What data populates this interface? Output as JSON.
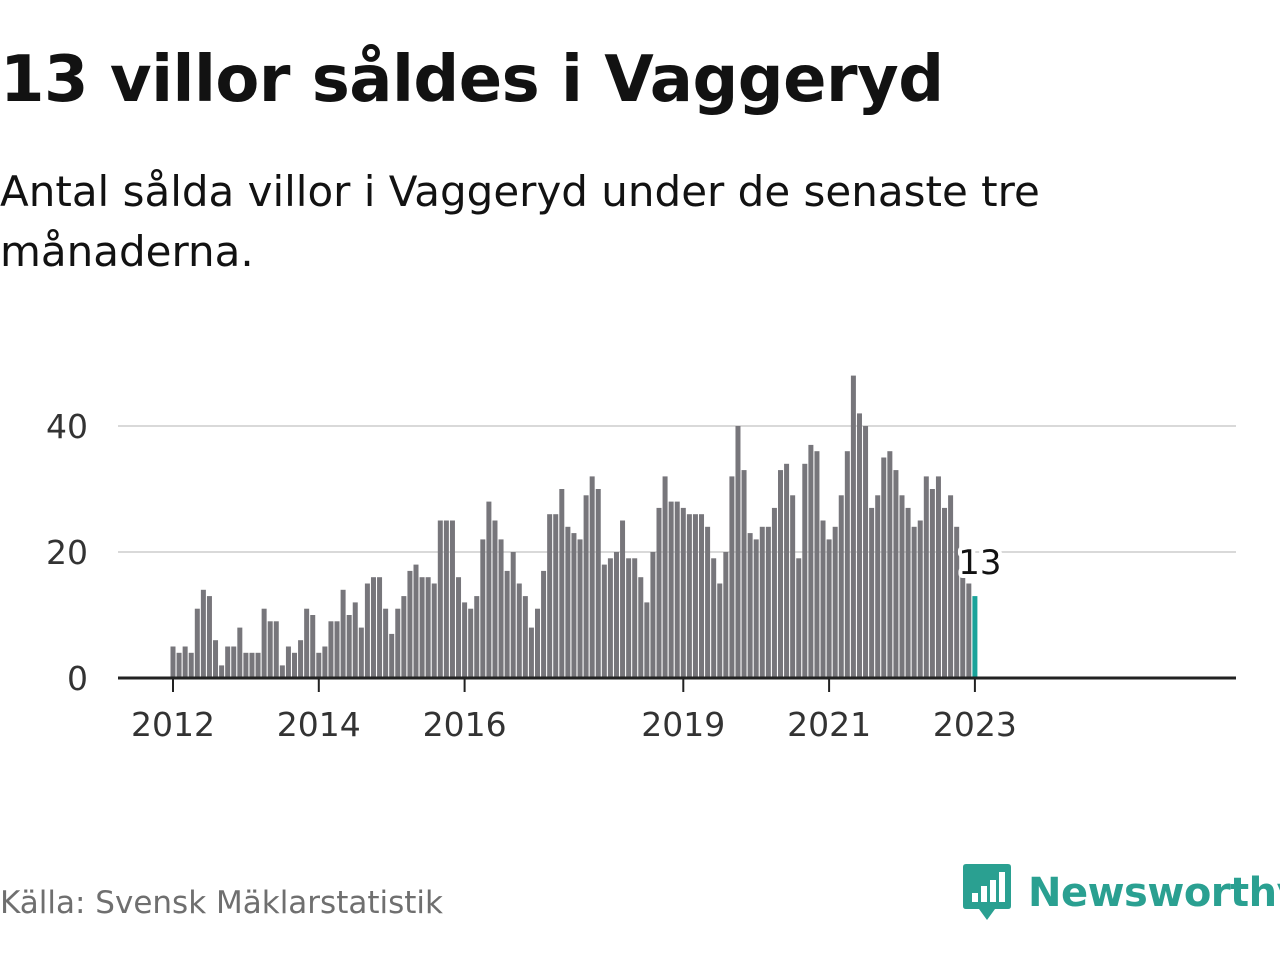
{
  "title": "13 villor såldes i Vaggeryd",
  "subtitle": "Antal sålda villor i Vaggeryd under de senaste tre månaderna.",
  "source": "Källa: Svensk Mäklarstatistik",
  "brand": {
    "name": "Newsworthy",
    "logo_icon": "newsworthy-chart-bubble-icon",
    "color": "#2aa091"
  },
  "colors": {
    "bar": "#77767b",
    "highlight": "#1aa39a",
    "grid": "#d9d9d9",
    "axis": "#222222"
  },
  "chart_data": {
    "type": "bar",
    "title": "13 villor såldes i Vaggeryd",
    "xlabel": "",
    "ylabel": "",
    "ylim": [
      0,
      48
    ],
    "yticks": [
      0,
      20,
      40
    ],
    "grid": true,
    "start": "2012-01",
    "frequency": "monthly",
    "xticks": [
      {
        "label": "2012",
        "index": 0
      },
      {
        "label": "2014",
        "index": 24
      },
      {
        "label": "2016",
        "index": 48
      },
      {
        "label": "2019",
        "index": 84
      },
      {
        "label": "2021",
        "index": 108
      },
      {
        "label": "2023",
        "index": 132
      }
    ],
    "values": [
      5,
      4,
      5,
      4,
      11,
      14,
      13,
      6,
      2,
      5,
      5,
      8,
      4,
      4,
      4,
      11,
      9,
      9,
      2,
      5,
      4,
      6,
      11,
      10,
      4,
      5,
      9,
      9,
      14,
      10,
      12,
      8,
      15,
      16,
      16,
      11,
      7,
      11,
      13,
      17,
      18,
      16,
      16,
      15,
      25,
      25,
      25,
      16,
      12,
      11,
      13,
      22,
      28,
      25,
      22,
      17,
      20,
      15,
      13,
      8,
      11,
      17,
      26,
      26,
      30,
      24,
      23,
      22,
      29,
      32,
      30,
      18,
      19,
      20,
      25,
      19,
      19,
      16,
      12,
      20,
      27,
      32,
      28,
      28,
      27,
      26,
      26,
      26,
      24,
      19,
      15,
      20,
      32,
      40,
      33,
      23,
      22,
      24,
      24,
      27,
      33,
      34,
      29,
      19,
      34,
      37,
      36,
      25,
      22,
      24,
      29,
      36,
      48,
      42,
      40,
      27,
      29,
      35,
      36,
      33,
      29,
      27,
      24,
      25,
      32,
      30,
      32,
      27,
      29,
      24,
      16,
      15,
      13
    ],
    "highlight_index": 132,
    "highlight_label": "13"
  }
}
